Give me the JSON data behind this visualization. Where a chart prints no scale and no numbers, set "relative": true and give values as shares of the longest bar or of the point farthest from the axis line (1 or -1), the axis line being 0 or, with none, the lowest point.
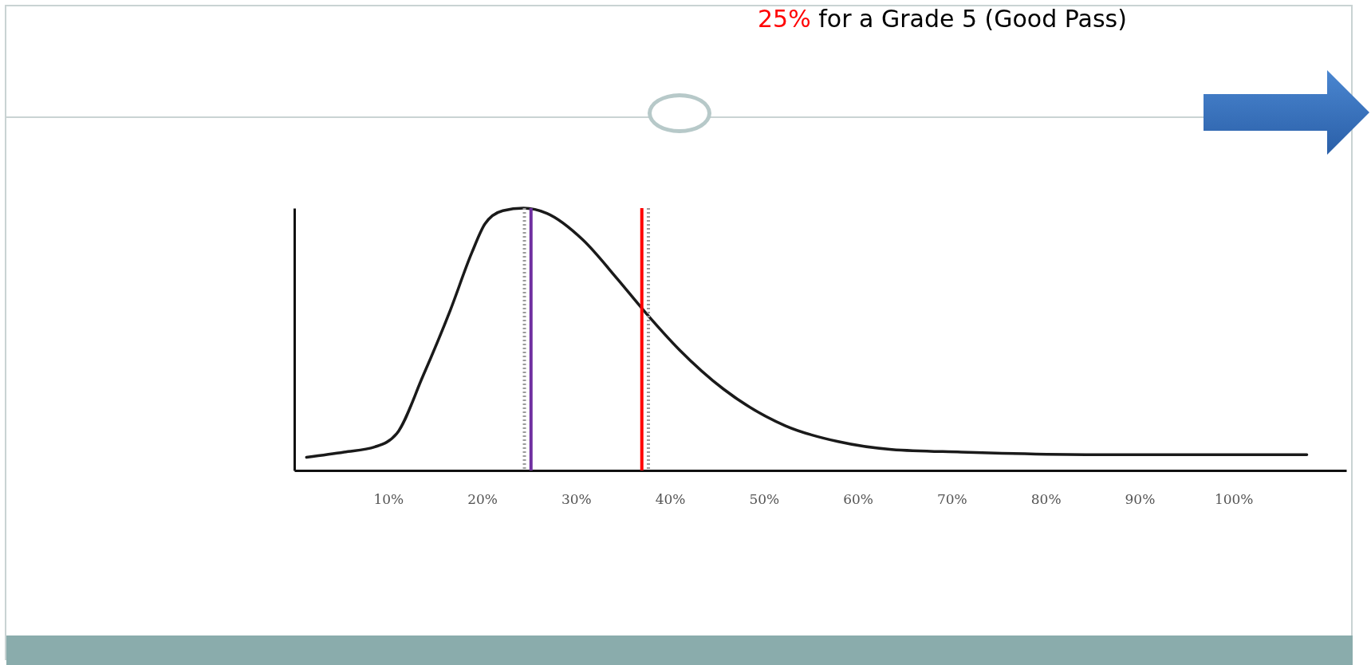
{
  "chart_data": {
    "type": "line",
    "relative": true,
    "annotations": [
      "25% for a Grade 5 (Good Pass)"
    ],
    "x": [
      1.3,
      5.3,
      8.6,
      10.9,
      13.7,
      16.6,
      18.9,
      20.3,
      22.2,
      24.4,
      26.9,
      30.7,
      34.4,
      37.2,
      41,
      45.7,
      52.3,
      57.9,
      63.6,
      71,
      85.2,
      107.8
    ],
    "series": [
      {
        "color": "#1a1a1a",
        "values": [
          0.05,
          0.07,
          0.09,
          0.14,
          0.36,
          0.61,
          0.83,
          0.94,
          0.99,
          1,
          0.98,
          0.88,
          0.73,
          0.61,
          0.46,
          0.31,
          0.17,
          0.11,
          0.08,
          0.07,
          0.06,
          0.06
        ]
      }
    ],
    "xlim": [
      0,
      112
    ],
    "xticks": [
      {
        "value": 10,
        "label": "10%"
      },
      {
        "value": 20,
        "label": "20%"
      },
      {
        "value": 30,
        "label": "30%"
      },
      {
        "value": 40,
        "label": "40%"
      },
      {
        "value": 50,
        "label": "50%"
      },
      {
        "value": 60,
        "label": "60%"
      },
      {
        "value": 70,
        "label": "70%"
      },
      {
        "value": 80,
        "label": "80%"
      },
      {
        "value": 90,
        "label": "90%"
      },
      {
        "value": 100,
        "label": "100%"
      }
    ],
    "ref_lines": [
      {
        "axis": "x",
        "value": 24.5,
        "color": "#9a9a9a",
        "line_style": "dotted"
      },
      {
        "axis": "x",
        "value": 37.7,
        "color": "#9a9a9a",
        "line_style": "dotted"
      },
      {
        "axis": "x",
        "value": 25.2,
        "color": "#7030a0",
        "line_style": "solid"
      },
      {
        "axis": "x",
        "value": 37,
        "color": "#ff0000",
        "line_style": "solid"
      }
    ],
    "grid": false,
    "marker": "none",
    "line_style": "solid"
  }
}
